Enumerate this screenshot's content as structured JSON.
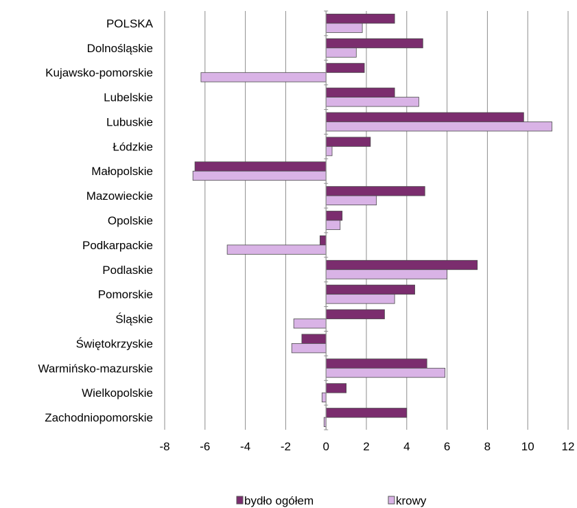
{
  "chart_data": {
    "type": "bar",
    "orientation": "horizontal",
    "categories": [
      "POLSKA",
      "Dolnośląskie",
      "Kujawsko-pomorskie",
      "Lubelskie",
      "Lubuskie",
      "Łódzkie",
      "Małopolskie",
      "Mazowieckie",
      "Opolskie",
      "Podkarpackie",
      "Podlaskie",
      "Pomorskie",
      "Śląskie",
      "Świętokrzyskie",
      "Warmińsko-mazurskie",
      "Wielkopolskie",
      "Zachodniopomorskie"
    ],
    "series": [
      {
        "name": "bydło ogółem",
        "color": "#7b2d6e",
        "values": [
          3.4,
          4.8,
          1.9,
          3.4,
          9.8,
          2.2,
          -6.5,
          4.9,
          0.8,
          -0.3,
          7.5,
          4.4,
          2.9,
          -1.2,
          5.0,
          1.0,
          4.0
        ]
      },
      {
        "name": "krowy",
        "color": "#d9b3e6",
        "values": [
          1.8,
          1.5,
          -6.2,
          4.6,
          11.2,
          0.3,
          -6.6,
          2.5,
          0.7,
          -4.9,
          6.0,
          3.4,
          -1.6,
          -1.7,
          5.9,
          -0.2,
          -0.1
        ]
      }
    ],
    "xlim": [
      -8,
      12
    ],
    "xticks": [
      "-8",
      "-6",
      "-4",
      "-2",
      "0",
      "2",
      "4",
      "6",
      "8",
      "10",
      "12"
    ],
    "xtick_values": [
      -8,
      -6,
      -4,
      -2,
      0,
      2,
      4,
      6,
      8,
      10,
      12
    ],
    "grid": "vertical",
    "legend_position": "bottom"
  }
}
